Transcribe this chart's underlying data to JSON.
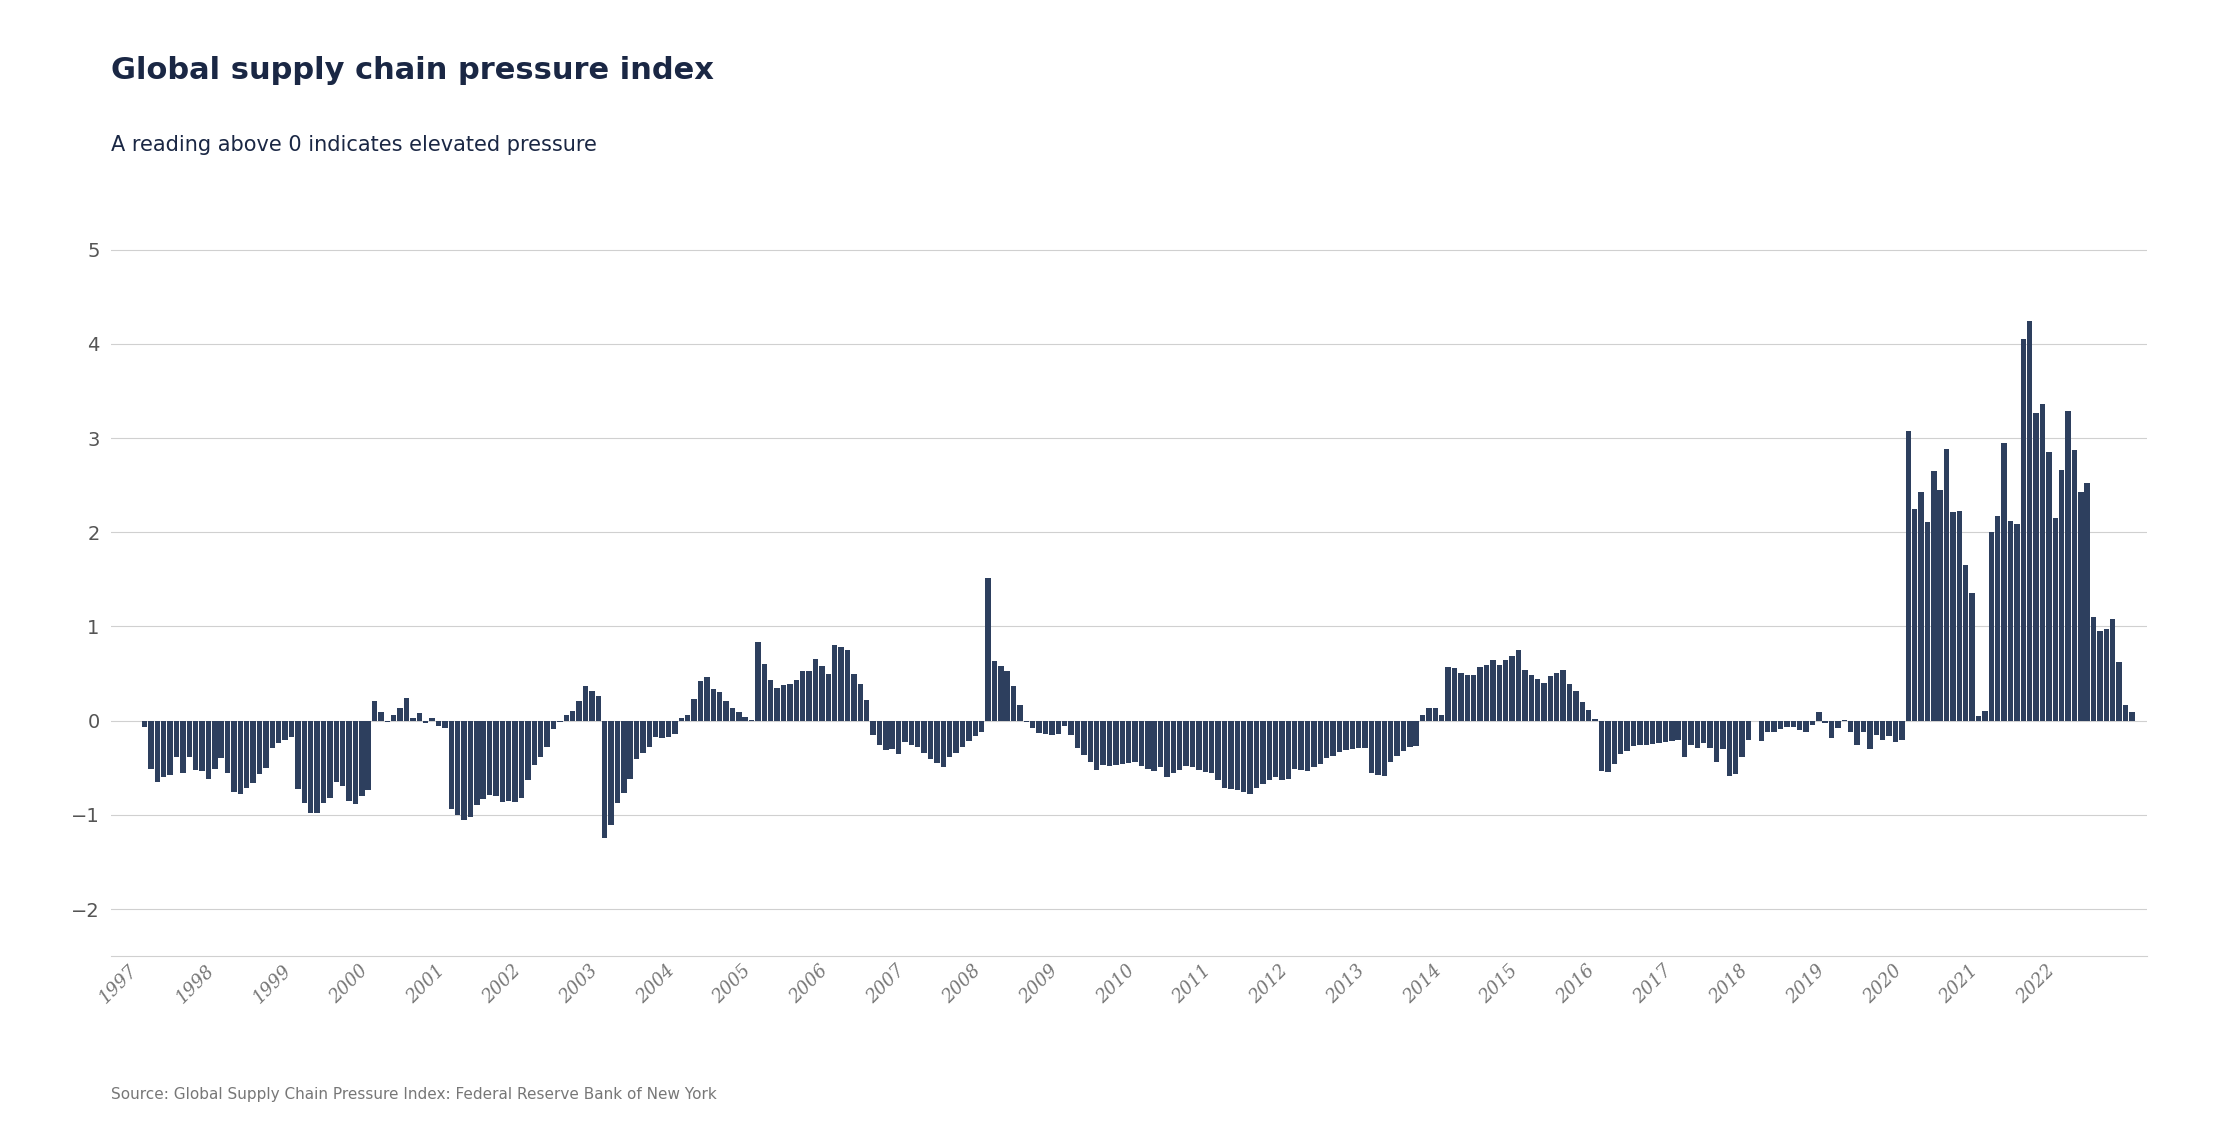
{
  "title": "Global supply chain pressure index",
  "subtitle": "A reading above 0 indicates elevated pressure",
  "source": "Source: Global Supply Chain Pressure Index: Federal Reserve Bank of New York",
  "bar_color": "#2d3f5e",
  "background_color": "#ffffff",
  "grid_color": "#d0d0d0",
  "ylim": [
    -2.5,
    5.5
  ],
  "yticks": [
    -2,
    -1,
    0,
    1,
    2,
    3,
    4,
    5
  ],
  "start_year": 1997,
  "values": [
    -0.07,
    -0.51,
    -0.65,
    -0.6,
    -0.58,
    -0.39,
    -0.55,
    -0.39,
    -0.52,
    -0.53,
    -0.62,
    -0.51,
    -0.4,
    -0.55,
    -0.76,
    -0.78,
    -0.71,
    -0.66,
    -0.57,
    -0.5,
    -0.29,
    -0.24,
    -0.2,
    -0.17,
    -0.72,
    -0.87,
    -0.98,
    -0.98,
    -0.87,
    -0.82,
    -0.65,
    -0.69,
    -0.85,
    -0.88,
    -0.8,
    -0.74,
    0.21,
    0.09,
    -0.01,
    0.06,
    0.13,
    0.24,
    0.03,
    0.08,
    -0.02,
    0.03,
    -0.06,
    -0.08,
    -0.94,
    -1.0,
    -1.05,
    -1.02,
    -0.89,
    -0.83,
    -0.79,
    -0.8,
    -0.86,
    -0.85,
    -0.86,
    -0.82,
    -0.63,
    -0.47,
    -0.39,
    -0.28,
    -0.09,
    -0.01,
    0.06,
    0.1,
    0.21,
    0.37,
    0.31,
    0.26,
    -1.25,
    -1.11,
    -0.87,
    -0.77,
    -0.62,
    -0.41,
    -0.34,
    -0.28,
    -0.17,
    -0.18,
    -0.17,
    -0.14,
    0.03,
    0.06,
    0.23,
    0.42,
    0.46,
    0.34,
    0.3,
    0.21,
    0.14,
    0.09,
    0.04,
    0.01,
    0.84,
    0.6,
    0.43,
    0.35,
    0.38,
    0.39,
    0.43,
    0.53,
    0.53,
    0.65,
    0.58,
    0.5,
    0.8,
    0.78,
    0.75,
    0.5,
    0.39,
    0.22,
    -0.15,
    -0.26,
    -0.31,
    -0.3,
    -0.35,
    -0.23,
    -0.26,
    -0.28,
    -0.34,
    -0.41,
    -0.45,
    -0.49,
    -0.39,
    -0.34,
    -0.28,
    -0.22,
    -0.16,
    -0.12,
    1.51,
    0.63,
    0.58,
    0.53,
    0.37,
    0.17,
    -0.01,
    -0.08,
    -0.13,
    -0.14,
    -0.15,
    -0.14,
    -0.06,
    -0.15,
    -0.29,
    -0.36,
    -0.44,
    -0.52,
    -0.47,
    -0.48,
    -0.47,
    -0.46,
    -0.45,
    -0.44,
    -0.48,
    -0.51,
    -0.53,
    -0.49,
    -0.6,
    -0.56,
    -0.52,
    -0.48,
    -0.49,
    -0.52,
    -0.54,
    -0.56,
    -0.63,
    -0.71,
    -0.73,
    -0.74,
    -0.76,
    -0.78,
    -0.71,
    -0.67,
    -0.63,
    -0.6,
    -0.63,
    -0.62,
    -0.51,
    -0.52,
    -0.53,
    -0.49,
    -0.46,
    -0.4,
    -0.37,
    -0.33,
    -0.31,
    -0.3,
    -0.29,
    -0.29,
    -0.55,
    -0.58,
    -0.59,
    -0.44,
    -0.37,
    -0.32,
    -0.28,
    -0.27,
    0.06,
    0.14,
    0.13,
    0.06,
    0.57,
    0.56,
    0.51,
    0.49,
    0.48,
    0.57,
    0.59,
    0.64,
    0.59,
    0.64,
    0.69,
    0.75,
    0.54,
    0.49,
    0.44,
    0.4,
    0.47,
    0.51,
    0.54,
    0.39,
    0.31,
    0.2,
    0.11,
    0.02,
    -0.53,
    -0.54,
    -0.46,
    -0.35,
    -0.32,
    -0.27,
    -0.26,
    -0.26,
    -0.25,
    -0.24,
    -0.23,
    -0.22,
    -0.2,
    -0.38,
    -0.26,
    -0.29,
    -0.24,
    -0.29,
    -0.44,
    -0.3,
    -0.59,
    -0.57,
    -0.39,
    -0.2,
    0.0,
    -0.22,
    -0.12,
    -0.12,
    -0.09,
    -0.07,
    -0.07,
    -0.1,
    -0.12,
    -0.05,
    0.09,
    -0.02,
    -0.18,
    -0.08,
    0.01,
    -0.12,
    -0.26,
    -0.12,
    -0.3,
    -0.15,
    -0.2,
    -0.16,
    -0.23,
    -0.2,
    3.07,
    2.25,
    2.43,
    2.11,
    2.65,
    2.45,
    2.88,
    2.22,
    2.23,
    1.65,
    1.36,
    0.05,
    0.1,
    2.0,
    2.17,
    2.95,
    2.12,
    2.09,
    4.05,
    4.24,
    3.27,
    3.36,
    2.85,
    2.15,
    2.66,
    3.29,
    2.87,
    2.43,
    2.52,
    1.1,
    0.95,
    0.97,
    1.08,
    0.62,
    0.17,
    0.09
  ]
}
